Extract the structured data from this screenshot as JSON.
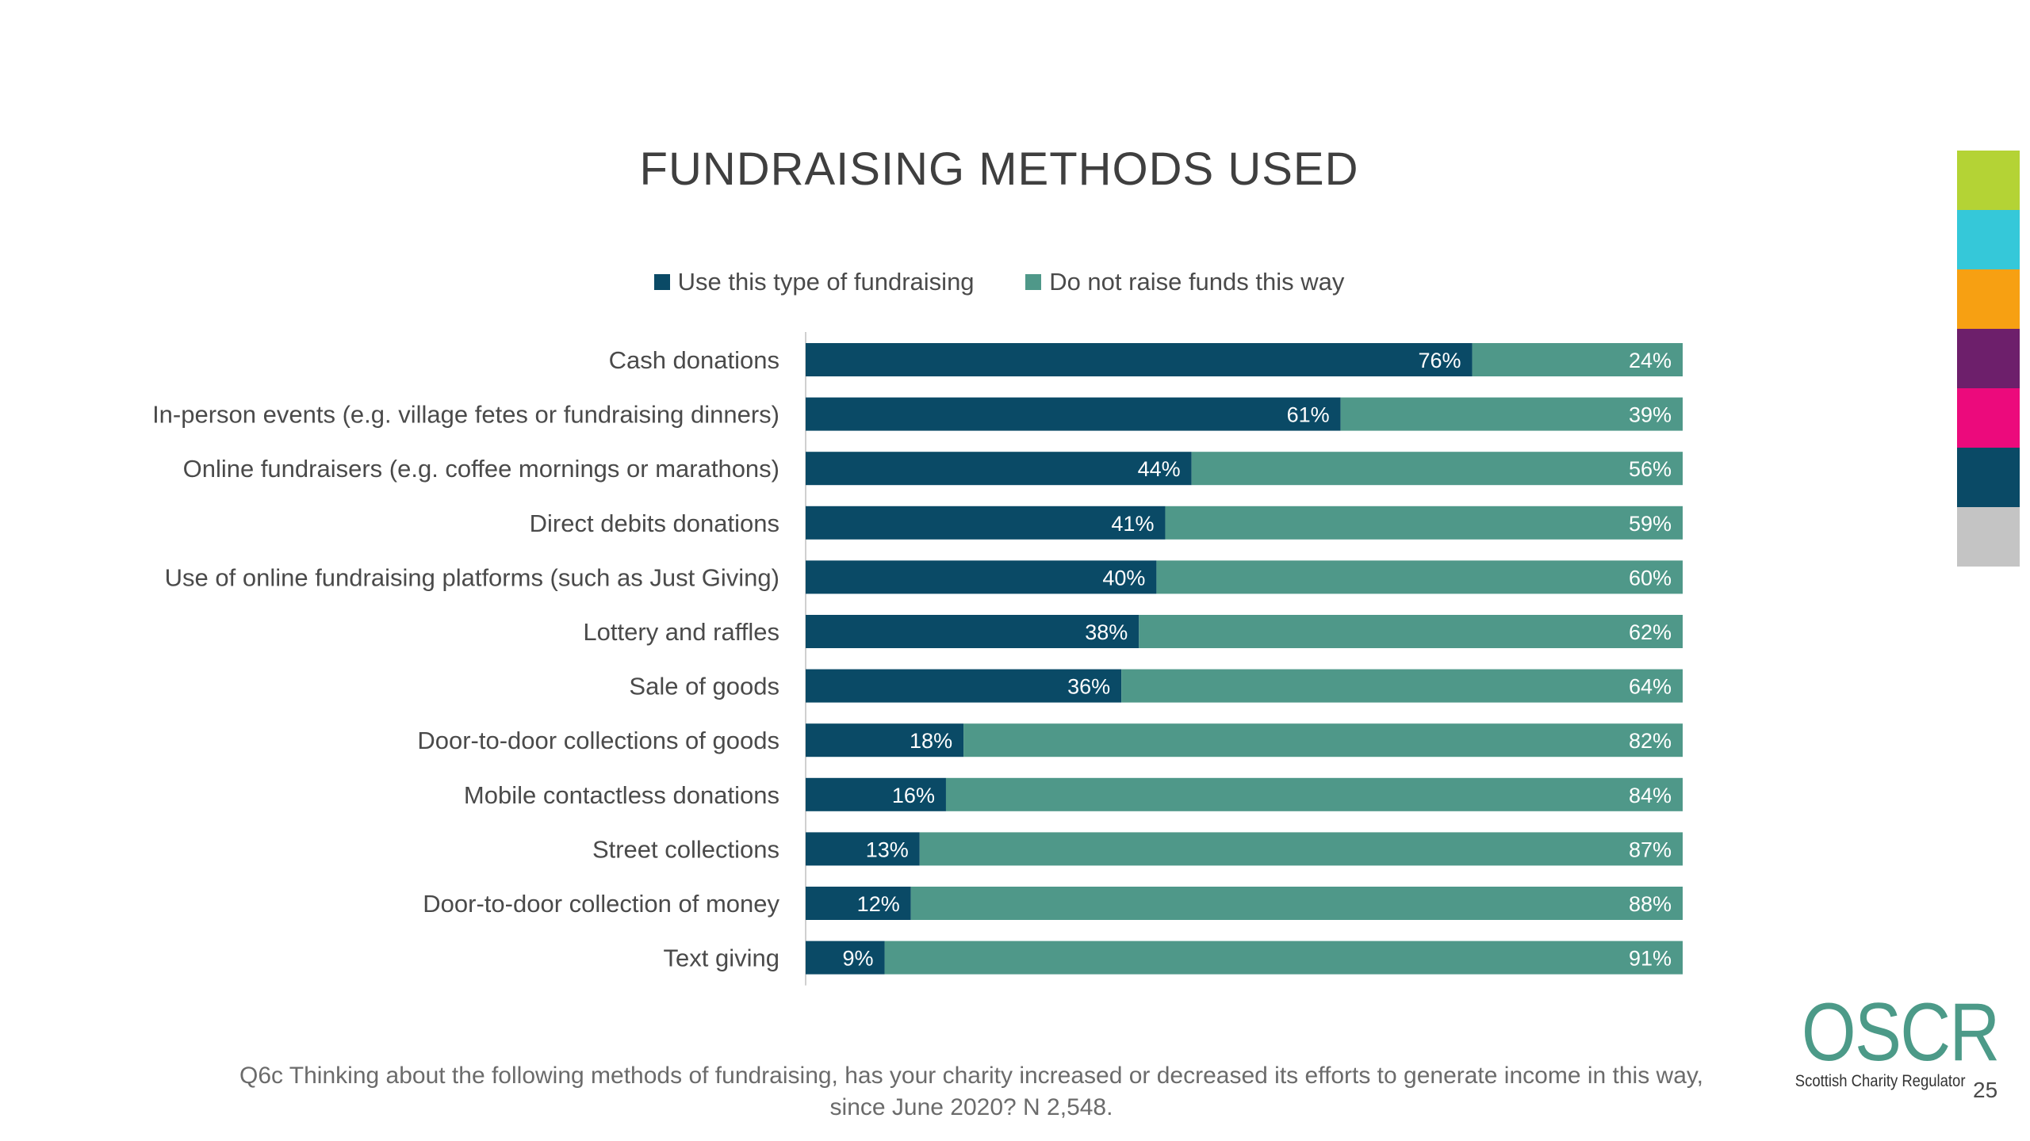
{
  "title": "FUNDRAISING METHODS USED",
  "colors": {
    "use": "#0a4a66",
    "not": "#4f9889",
    "strip": [
      "#b4d335",
      "#35c8d9",
      "#f7a012",
      "#6d1f6b",
      "#ec0a7c",
      "#0a4a66",
      "#c4c4c4"
    ]
  },
  "legend": {
    "use_label": "Use this type of fundraising",
    "not_label": "Do not raise funds this way"
  },
  "chart_data": {
    "type": "bar",
    "orientation": "horizontal",
    "stacked": true,
    "title": "FUNDRAISING METHODS USED",
    "xlim": [
      0,
      100
    ],
    "categories": [
      "Cash donations",
      "In-person events (e.g. village fetes or fundraising dinners)",
      "Online fundraisers (e.g. coffee mornings or marathons)",
      "Direct debits donations",
      "Use of online fundraising platforms (such as Just Giving)",
      "Lottery and raffles",
      "Sale of goods",
      "Door-to-door collections of goods",
      "Mobile contactless donations",
      "Street collections",
      "Door-to-door collection of money",
      "Text giving"
    ],
    "series": [
      {
        "name": "Use this type of fundraising",
        "values": [
          76,
          61,
          44,
          41,
          40,
          38,
          36,
          18,
          16,
          13,
          12,
          9
        ]
      },
      {
        "name": "Do not raise funds this way",
        "values": [
          24,
          39,
          56,
          59,
          60,
          62,
          64,
          82,
          84,
          87,
          88,
          91
        ]
      }
    ],
    "value_suffix": "%",
    "legend_position": "top"
  },
  "footnote": {
    "line1": "Q6c Thinking about the following methods of fundraising, has your charity increased or decreased its efforts to generate income in this way,",
    "line2": "since June 2020? N 2,548."
  },
  "logo": {
    "main": "OSCR",
    "sub": "Scottish Charity Regulator"
  },
  "page_number": "25"
}
